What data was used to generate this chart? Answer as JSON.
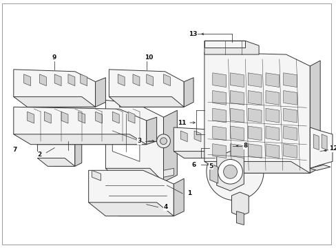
{
  "background_color": "#ffffff",
  "line_color": "#333333",
  "fill_light": "#f5f5f5",
  "fill_mid": "#e8e8e8",
  "fill_dark": "#d0d0d0",
  "lw": 0.7,
  "figsize": [
    4.89,
    3.6
  ],
  "dpi": 100
}
